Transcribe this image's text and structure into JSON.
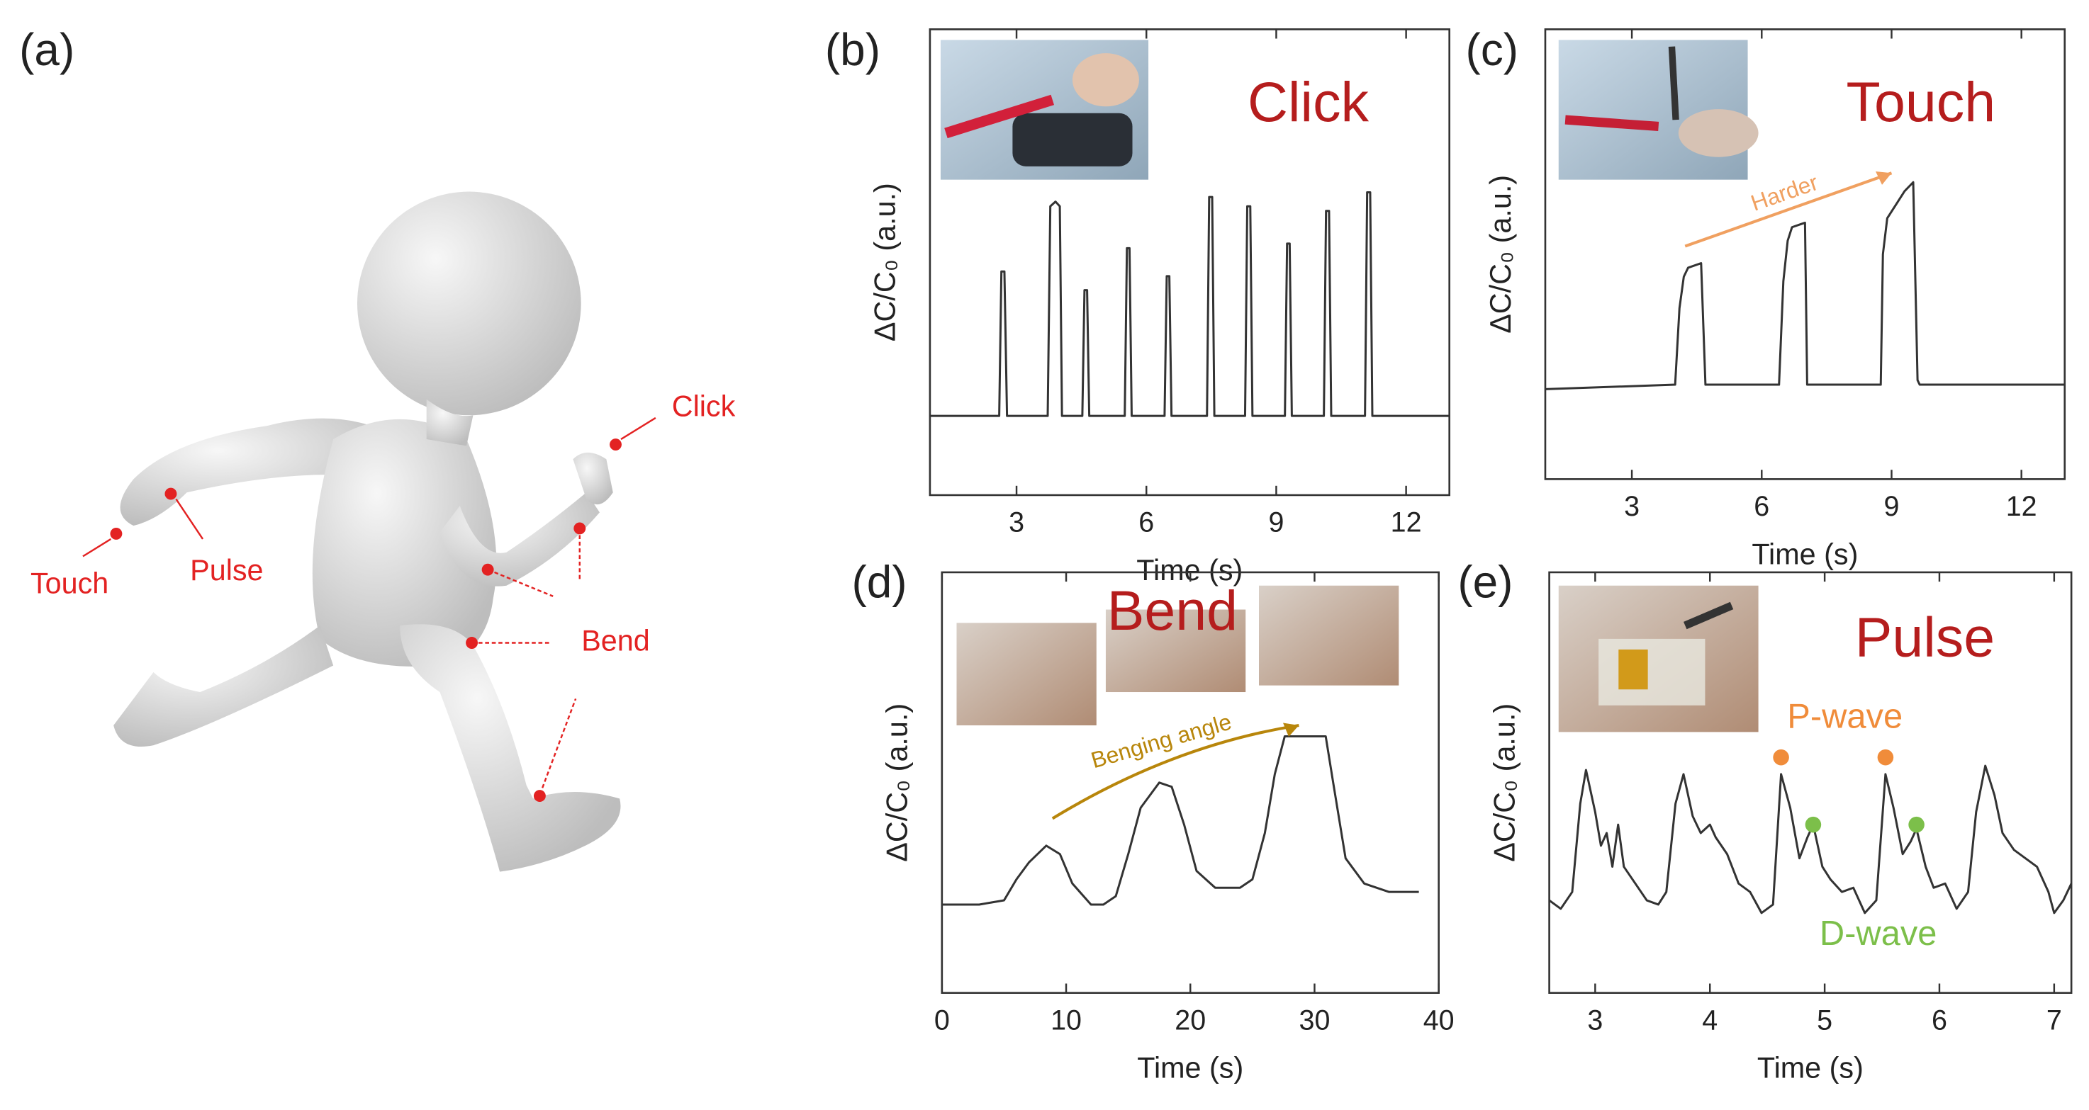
{
  "panel_a": {
    "label": "(a)",
    "labels": {
      "click": "Click",
      "touch": "Touch",
      "pulse": "Pulse",
      "bend": "Bend"
    }
  },
  "chart_data": [
    {
      "type": "line",
      "panel": "(b)",
      "title": "Click",
      "x_label": "Time (s)",
      "y_label": "ΔC/C₀ (a.u.)",
      "xlim": [
        1,
        13
      ],
      "xticks": [
        3,
        6,
        9,
        12
      ],
      "ylim": [
        0,
        1
      ],
      "x": [
        1,
        2.6,
        2.65,
        2.72,
        2.78,
        3.72,
        3.78,
        3.9,
        4.0,
        4.05,
        4.52,
        4.57,
        4.63,
        4.68,
        5.5,
        5.55,
        5.61,
        5.66,
        6.42,
        6.47,
        6.53,
        6.58,
        7.4,
        7.45,
        7.52,
        7.57,
        8.28,
        8.33,
        8.4,
        8.45,
        9.2,
        9.25,
        9.31,
        9.36,
        10.1,
        10.15,
        10.22,
        10.27,
        11.05,
        11.1,
        11.17,
        11.22,
        13
      ],
      "series": [
        {
          "color": "#333333",
          "values": [
            0.17,
            0.17,
            0.48,
            0.48,
            0.17,
            0.17,
            0.62,
            0.63,
            0.62,
            0.17,
            0.17,
            0.44,
            0.44,
            0.17,
            0.17,
            0.53,
            0.53,
            0.17,
            0.17,
            0.47,
            0.47,
            0.17,
            0.17,
            0.64,
            0.64,
            0.17,
            0.17,
            0.62,
            0.62,
            0.17,
            0.17,
            0.54,
            0.54,
            0.17,
            0.17,
            0.61,
            0.61,
            0.17,
            0.17,
            0.65,
            0.65,
            0.17,
            0.17
          ]
        }
      ]
    },
    {
      "type": "line",
      "panel": "(c)",
      "title": "Touch",
      "x_label": "Time (s)",
      "y_label": "ΔC/C₀ (a.u.)",
      "xlim": [
        1,
        13
      ],
      "xticks": [
        3,
        6,
        9,
        12
      ],
      "ylim": [
        0,
        1
      ],
      "annotations": [
        {
          "text": "Harder",
          "color": "#f0a060"
        }
      ],
      "x": [
        1,
        4.0,
        4.1,
        4.2,
        4.3,
        4.6,
        4.7,
        4.75,
        6.4,
        6.5,
        6.6,
        6.7,
        7.0,
        7.05,
        7.1,
        8.75,
        8.8,
        8.9,
        9.1,
        9.3,
        9.5,
        9.6,
        9.65,
        13
      ],
      "series": [
        {
          "color": "#333333",
          "values": [
            0.2,
            0.21,
            0.38,
            0.45,
            0.47,
            0.48,
            0.21,
            0.21,
            0.21,
            0.44,
            0.53,
            0.56,
            0.57,
            0.21,
            0.21,
            0.21,
            0.5,
            0.58,
            0.61,
            0.64,
            0.66,
            0.22,
            0.21,
            0.21
          ]
        }
      ]
    },
    {
      "type": "line",
      "panel": "(d)",
      "title": "Bend",
      "x_label": "Time (s)",
      "y_label": "ΔC/C₀ (a.u.)",
      "xlim": [
        0,
        40
      ],
      "xticks": [
        0,
        10,
        20,
        30,
        40
      ],
      "ylim": [
        0,
        1
      ],
      "annotations": [
        {
          "text": "Benging angle",
          "color": "#b8860b"
        }
      ],
      "x": [
        0,
        3,
        5,
        6,
        7,
        8.4,
        9.5,
        10.5,
        12,
        13,
        14,
        15,
        16,
        17.5,
        18.5,
        19.5,
        20.5,
        22,
        24,
        25,
        26,
        26.8,
        27.6,
        30.9,
        31.5,
        32.5,
        34,
        36,
        38.4
      ],
      "series": [
        {
          "color": "#333333",
          "values": [
            0.21,
            0.21,
            0.22,
            0.27,
            0.31,
            0.35,
            0.33,
            0.26,
            0.21,
            0.21,
            0.23,
            0.33,
            0.44,
            0.5,
            0.49,
            0.4,
            0.29,
            0.25,
            0.25,
            0.27,
            0.38,
            0.52,
            0.61,
            0.61,
            0.5,
            0.32,
            0.26,
            0.24,
            0.24
          ]
        }
      ]
    },
    {
      "type": "line",
      "panel": "(e)",
      "title": "Pulse",
      "x_label": "Time (s)",
      "y_label": "ΔC/C₀ (a.u.)",
      "xlim": [
        2.6,
        7.15
      ],
      "xticks": [
        3,
        4,
        5,
        6,
        7
      ],
      "ylim": [
        0,
        1
      ],
      "annotations": [
        {
          "text": "P-wave",
          "color": "#f08c3a",
          "x": [
            4.62,
            5.53
          ],
          "y": [
            0.56,
            0.56
          ]
        },
        {
          "text": "D-wave",
          "color": "#7cbf4a",
          "x": [
            4.9,
            5.8
          ],
          "y": [
            0.4,
            0.4
          ]
        }
      ],
      "x": [
        2.6,
        2.7,
        2.8,
        2.87,
        2.92,
        3.0,
        3.05,
        3.1,
        3.15,
        3.2,
        3.25,
        3.35,
        3.45,
        3.55,
        3.62,
        3.7,
        3.77,
        3.85,
        3.92,
        4.0,
        4.05,
        4.15,
        4.25,
        4.35,
        4.45,
        4.55,
        4.62,
        4.7,
        4.78,
        4.85,
        4.9,
        4.98,
        5.05,
        5.15,
        5.25,
        5.35,
        5.45,
        5.53,
        5.6,
        5.68,
        5.75,
        5.8,
        5.88,
        5.95,
        6.05,
        6.15,
        6.25,
        6.32,
        6.4,
        6.48,
        6.55,
        6.65,
        6.75,
        6.85,
        6.95,
        7.0,
        7.08,
        7.15
      ],
      "series": [
        {
          "color": "#333333",
          "values": [
            0.22,
            0.2,
            0.24,
            0.45,
            0.53,
            0.43,
            0.35,
            0.38,
            0.3,
            0.4,
            0.3,
            0.26,
            0.22,
            0.21,
            0.24,
            0.45,
            0.52,
            0.42,
            0.38,
            0.4,
            0.37,
            0.33,
            0.26,
            0.24,
            0.19,
            0.21,
            0.52,
            0.44,
            0.32,
            0.37,
            0.4,
            0.3,
            0.27,
            0.24,
            0.25,
            0.19,
            0.22,
            0.52,
            0.44,
            0.33,
            0.36,
            0.39,
            0.3,
            0.25,
            0.26,
            0.2,
            0.24,
            0.43,
            0.54,
            0.47,
            0.38,
            0.34,
            0.32,
            0.3,
            0.24,
            0.19,
            0.22,
            0.26
          ]
        }
      ]
    }
  ]
}
